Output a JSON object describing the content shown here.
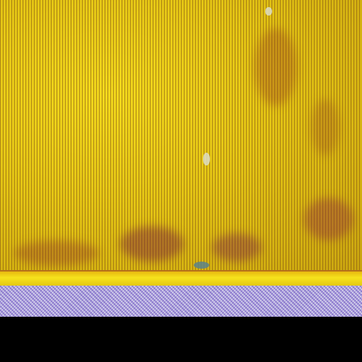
{
  "scene": {
    "description_type": "microscope-style close-up photograph",
    "colors": {
      "panel_yellow": "#e3c414",
      "stain_brown": "#8c3c28",
      "edge_yellow": "#f6e21c",
      "substrate_lavender": "#b9b0e6",
      "letterbox_black": "#000000"
    }
  }
}
